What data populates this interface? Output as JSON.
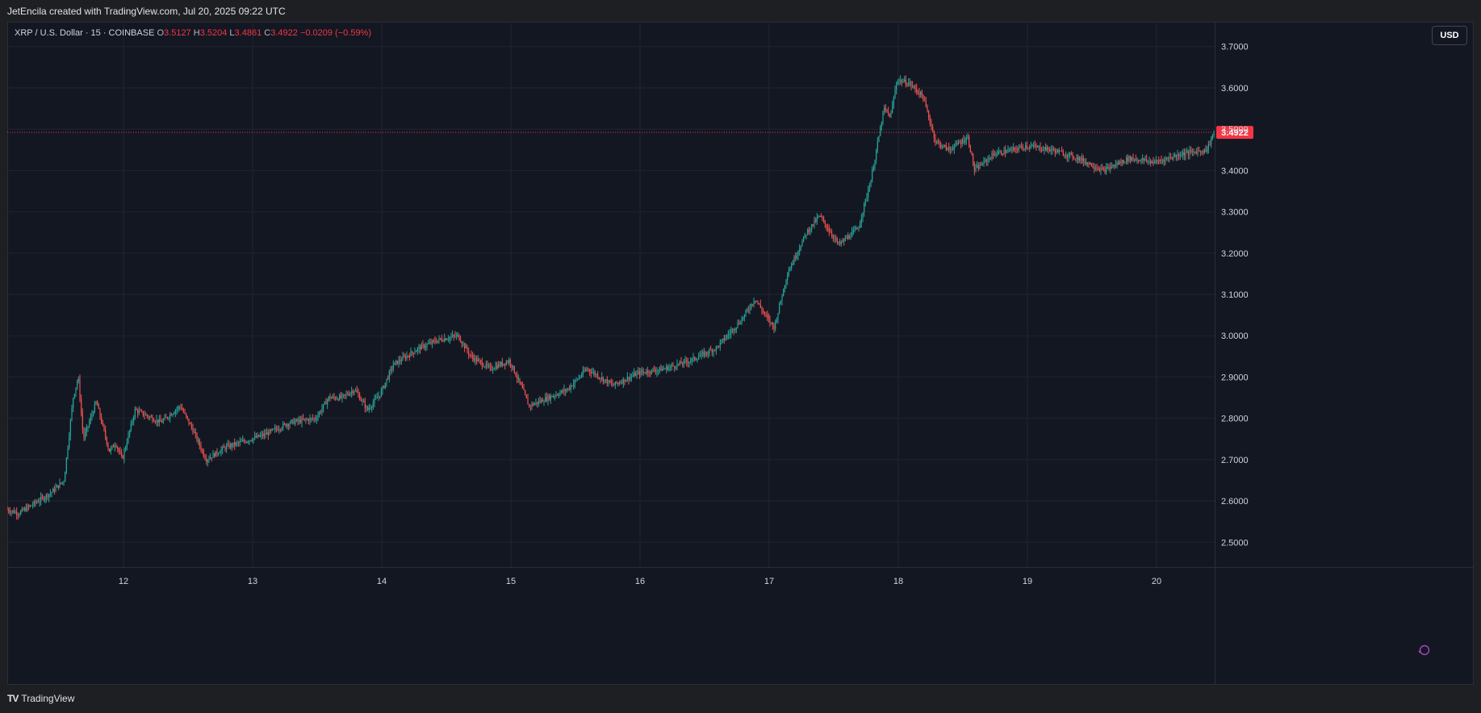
{
  "header": {
    "title": "JetEncila created with TradingView.com, Jul 20, 2025 09:22 UTC"
  },
  "legend": {
    "symbol": "XRP / U.S. Dollar · 15 · COINBASE",
    "o_label": "O",
    "o_value": "3.5127",
    "h_label": "H",
    "h_value": "3.5204",
    "l_label": "L",
    "l_value": "3.4861",
    "c_label": "C",
    "c_value": "3.4922",
    "change": "−0.0209 (−0.59%)"
  },
  "toolbar": {
    "currency_label": "USD"
  },
  "footer": {
    "brand_mark": "TV",
    "brand_label": "TradingView"
  },
  "icons": {
    "alert": "alert-icon",
    "logo": "tradingview-logo-icon"
  },
  "colors": {
    "background": "#131722",
    "up": "#26a69a",
    "down": "#ef5350",
    "price_line": "#f23645",
    "grid": "#1f2430",
    "axis_text": "#d1d4dc"
  },
  "chart_data": {
    "type": "candlestick",
    "interval": "15",
    "symbol": "XRP / U.S. Dollar",
    "exchange": "COINBASE",
    "currency": "USD",
    "x_ticks": [
      "12",
      "13",
      "14",
      "15",
      "16",
      "17",
      "18",
      "19",
      "20"
    ],
    "x_range_days": [
      11.1,
      20.45
    ],
    "y_ticks": [
      "2.5000",
      "2.6000",
      "2.7000",
      "2.8000",
      "2.9000",
      "3.0000",
      "3.1000",
      "3.2000",
      "3.3000",
      "3.4000",
      "3.5000",
      "3.6000",
      "3.7000"
    ],
    "ylim": [
      2.44,
      3.76
    ],
    "last_price": "3.4922",
    "grid": true,
    "price_path_days": [
      11.1,
      11.2,
      11.3,
      11.45,
      11.55,
      11.62,
      11.66,
      11.7,
      11.8,
      11.9,
      11.95,
      12.0,
      12.1,
      12.3,
      12.45,
      12.55,
      12.65,
      12.8,
      12.9,
      13.1,
      13.3,
      13.5,
      13.6,
      13.7,
      13.8,
      13.9,
      14.0,
      14.1,
      14.3,
      14.45,
      14.6,
      14.7,
      14.85,
      15.0,
      15.1,
      15.15,
      15.3,
      15.45,
      15.6,
      15.8,
      16.0,
      16.2,
      16.4,
      16.6,
      16.8,
      16.9,
      17.0,
      17.05,
      17.15,
      17.3,
      17.4,
      17.55,
      17.7,
      17.8,
      17.9,
      17.95,
      18.0,
      18.1,
      18.2,
      18.3,
      18.4,
      18.55,
      18.6,
      18.75,
      18.9,
      19.0,
      19.2,
      19.4,
      19.6,
      19.8,
      20.0,
      20.2,
      20.4,
      20.45
    ],
    "price_path_values": [
      2.58,
      2.57,
      2.59,
      2.62,
      2.65,
      2.85,
      2.9,
      2.75,
      2.84,
      2.72,
      2.74,
      2.7,
      2.82,
      2.79,
      2.83,
      2.77,
      2.7,
      2.73,
      2.74,
      2.76,
      2.79,
      2.8,
      2.85,
      2.85,
      2.87,
      2.82,
      2.86,
      2.93,
      2.97,
      2.99,
      3.0,
      2.95,
      2.92,
      2.94,
      2.87,
      2.83,
      2.85,
      2.87,
      2.92,
      2.88,
      2.91,
      2.92,
      2.94,
      2.97,
      3.04,
      3.09,
      3.04,
      3.02,
      3.15,
      3.25,
      3.29,
      3.22,
      3.26,
      3.38,
      3.55,
      3.53,
      3.62,
      3.61,
      3.58,
      3.47,
      3.45,
      3.48,
      3.4,
      3.44,
      3.45,
      3.46,
      3.45,
      3.43,
      3.4,
      3.43,
      3.42,
      3.44,
      3.45,
      3.49
    ]
  }
}
